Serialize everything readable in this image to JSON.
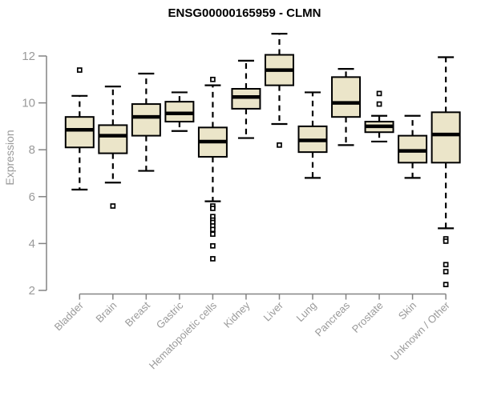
{
  "chart_data": {
    "type": "boxplot",
    "title": "ENSG00000165959 - CLMN",
    "ylabel": "Expression",
    "xlabel": "",
    "ylim": [
      2,
      13.2
    ],
    "y_ticks": [
      2,
      4,
      6,
      8,
      10,
      12
    ],
    "grid": false,
    "legend": "none",
    "categories": [
      "Bladder",
      "Brain",
      "Breast",
      "Gastric",
      "Hematopoietic cells",
      "Kidney",
      "Liver",
      "Lung",
      "Pancreas",
      "Prostate",
      "Skin",
      "Unknown / Other"
    ],
    "boxes": [
      {
        "category": "Bladder",
        "low": 6.3,
        "q1": 8.1,
        "median": 8.85,
        "q3": 9.4,
        "high": 10.3,
        "outliers": [
          11.4
        ]
      },
      {
        "category": "Brain",
        "low": 6.6,
        "q1": 7.85,
        "median": 8.6,
        "q3": 9.05,
        "high": 10.7,
        "outliers": [
          5.6
        ]
      },
      {
        "category": "Breast",
        "low": 7.1,
        "q1": 8.6,
        "median": 9.4,
        "q3": 9.95,
        "high": 11.25,
        "outliers": []
      },
      {
        "category": "Gastric",
        "low": 8.8,
        "q1": 9.2,
        "median": 9.55,
        "q3": 10.05,
        "high": 10.45,
        "outliers": []
      },
      {
        "category": "Hematopoietic cells",
        "low": 5.8,
        "q1": 7.7,
        "median": 8.35,
        "q3": 8.95,
        "high": 10.75,
        "outliers": [
          11.0,
          5.6,
          5.5,
          5.15,
          5.0,
          4.9,
          4.75,
          4.6,
          4.4,
          3.9,
          3.35
        ]
      },
      {
        "category": "Kidney",
        "low": 8.5,
        "q1": 9.75,
        "median": 10.25,
        "q3": 10.6,
        "high": 11.8,
        "outliers": []
      },
      {
        "category": "Liver",
        "low": 9.1,
        "q1": 10.75,
        "median": 11.4,
        "q3": 12.05,
        "high": 12.95,
        "outliers": [
          8.2
        ]
      },
      {
        "category": "Lung",
        "low": 6.8,
        "q1": 7.9,
        "median": 8.4,
        "q3": 9.0,
        "high": 10.45,
        "outliers": []
      },
      {
        "category": "Pancreas",
        "low": 8.2,
        "q1": 9.4,
        "median": 10.0,
        "q3": 11.1,
        "high": 11.45,
        "outliers": []
      },
      {
        "category": "Prostate",
        "low": 8.35,
        "q1": 8.75,
        "median": 9.0,
        "q3": 9.2,
        "high": 9.45,
        "outliers": [
          10.4,
          9.95
        ]
      },
      {
        "category": "Skin",
        "low": 6.8,
        "q1": 7.45,
        "median": 7.95,
        "q3": 8.6,
        "high": 9.45,
        "outliers": []
      },
      {
        "category": "Unknown / Other",
        "low": 4.65,
        "q1": 7.45,
        "median": 8.65,
        "q3": 9.6,
        "high": 11.95,
        "outliers": [
          4.2,
          4.1,
          3.1,
          2.8,
          2.25
        ]
      }
    ],
    "colors": {
      "box_fill": "#EBE5C9",
      "box_border": "#000000",
      "median": "#000000",
      "whisker": "#000000",
      "axis": "#848484",
      "tick_label": "#9a9a9a",
      "title": "#000000",
      "background": "#ffffff"
    }
  }
}
